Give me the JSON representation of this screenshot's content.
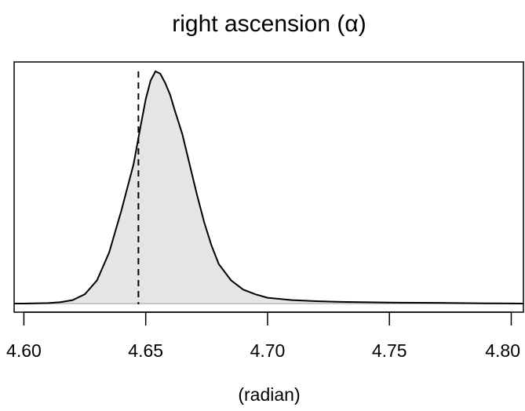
{
  "chart_data": {
    "type": "area",
    "title": "right ascension (α)",
    "xlabel": "(radian)",
    "ylabel": "",
    "xlim": [
      4.596,
      4.805
    ],
    "x_ticks": [
      "4.60",
      "4.65",
      "4.70",
      "4.75",
      "4.80"
    ],
    "grid": false,
    "reference_line": {
      "x": 4.647,
      "style": "dashed"
    },
    "series": [
      {
        "x": [
          4.596,
          4.6,
          4.61,
          4.615,
          4.62,
          4.625,
          4.63,
          4.635,
          4.64,
          4.645,
          4.648,
          4.65,
          4.652,
          4.654,
          4.656,
          4.658,
          4.66,
          4.662,
          4.665,
          4.668,
          4.671,
          4.674,
          4.677,
          4.68,
          4.685,
          4.69,
          4.695,
          4.7,
          4.71,
          4.72,
          4.73,
          4.75,
          4.77,
          4.79,
          4.805
        ],
        "y": [
          0.0,
          0.0,
          0.002,
          0.006,
          0.015,
          0.04,
          0.1,
          0.22,
          0.4,
          0.6,
          0.77,
          0.88,
          0.96,
          1.0,
          0.99,
          0.95,
          0.9,
          0.83,
          0.73,
          0.6,
          0.47,
          0.35,
          0.25,
          0.17,
          0.1,
          0.06,
          0.04,
          0.025,
          0.015,
          0.01,
          0.007,
          0.004,
          0.003,
          0.001,
          0.0
        ]
      }
    ],
    "colors": {
      "fill": "#e5e5e5",
      "line": "#000000",
      "baseline": "#b3b3b3"
    }
  }
}
